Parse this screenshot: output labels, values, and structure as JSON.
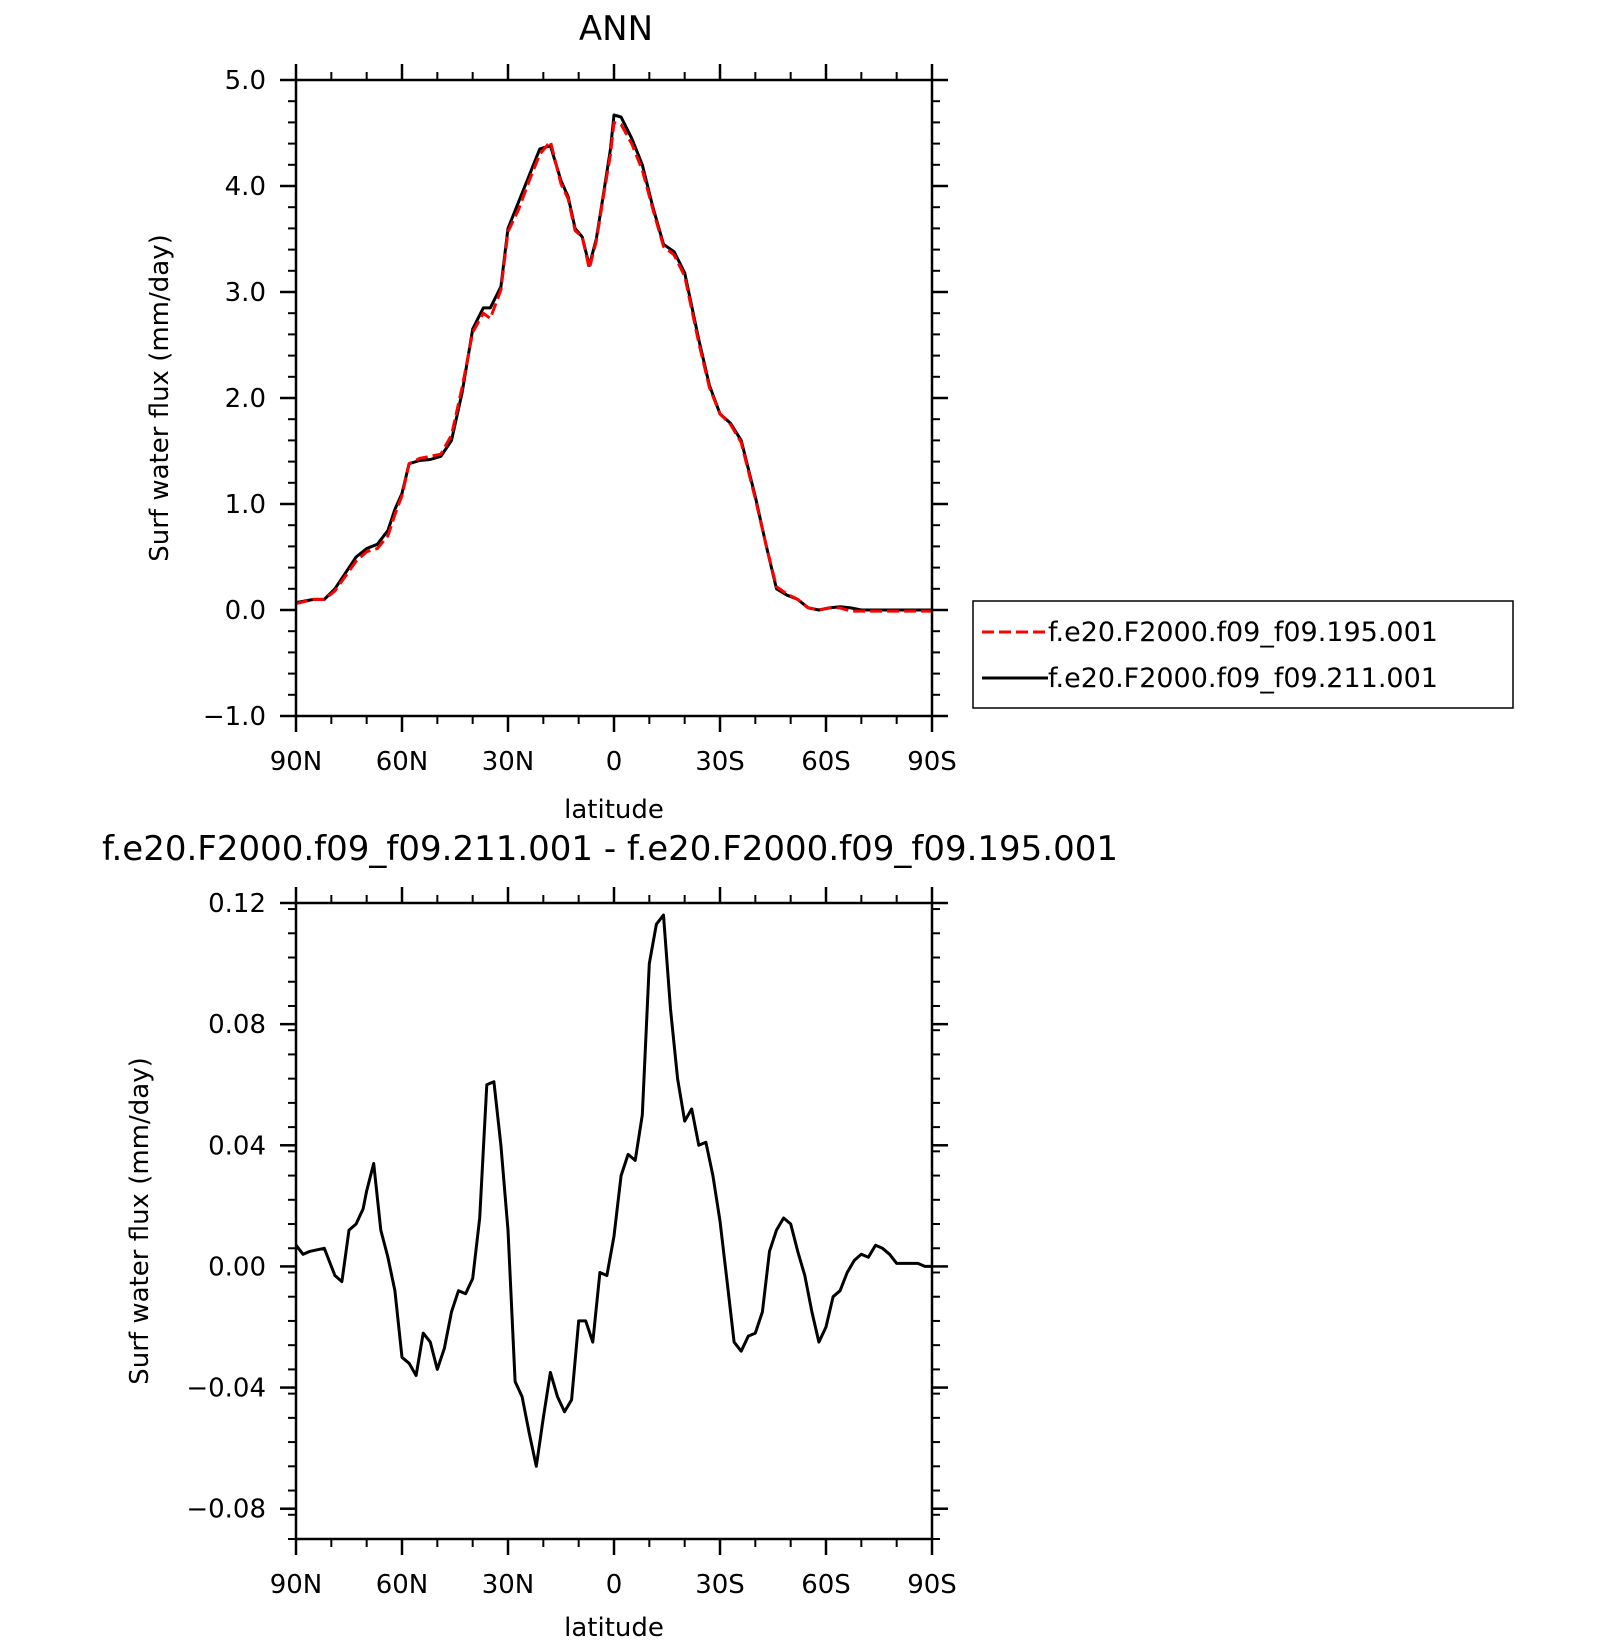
{
  "chart_data": [
    {
      "type": "line",
      "title": "ANN",
      "xlabel": "latitude",
      "ylabel": "Surf water flux (mm/day)",
      "xlim": [
        90,
        -90
      ],
      "ylim": [
        -1.0,
        5.0
      ],
      "x_tick_labels": [
        "90N",
        "60N",
        "30N",
        "0",
        "30S",
        "60S",
        "90S"
      ],
      "y_tick_labels": [
        "-1.0",
        "0.0",
        "1.0",
        "2.0",
        "3.0",
        "4.0",
        "5.0"
      ],
      "legend_position": "right",
      "series": [
        {
          "name": "f.e20.F2000.f09_f09.195.001",
          "color": "#ff0000",
          "dash": "dashed",
          "x": [
            90,
            85,
            82,
            79,
            76,
            73,
            70,
            67,
            64,
            62,
            60,
            58,
            55,
            52,
            49,
            46,
            43,
            40,
            37,
            35,
            32,
            30,
            27,
            24,
            21,
            18,
            15,
            13,
            11,
            9,
            7,
            5,
            3,
            1,
            0,
            -2,
            -5,
            -8,
            -11,
            -14,
            -17,
            -20,
            -24,
            -27,
            -30,
            -33,
            -36,
            -40,
            -43,
            -46,
            -49,
            -52,
            -55,
            -58,
            -61,
            -64,
            -67,
            -70,
            -73,
            -76,
            -79,
            -81,
            -84,
            -87,
            -90
          ],
          "y": [
            0.06,
            0.1,
            0.1,
            0.18,
            0.32,
            0.46,
            0.55,
            0.58,
            0.7,
            0.9,
            1.08,
            1.38,
            1.43,
            1.45,
            1.47,
            1.65,
            2.1,
            2.62,
            2.8,
            2.75,
            3.02,
            3.57,
            3.78,
            4.05,
            4.3,
            4.42,
            4.02,
            3.88,
            3.58,
            3.52,
            3.22,
            3.48,
            3.9,
            4.3,
            4.6,
            4.58,
            4.4,
            4.15,
            3.78,
            3.43,
            3.35,
            3.15,
            2.52,
            2.1,
            1.85,
            1.75,
            1.58,
            1.05,
            0.62,
            0.22,
            0.15,
            0.1,
            0.02,
            0.0,
            0.02,
            0.02,
            -0.01,
            -0.01,
            -0.01,
            -0.01,
            -0.01,
            -0.01,
            -0.01,
            -0.01,
            -0.01
          ]
        },
        {
          "name": "f.e20.F2000.f09_f09.211.001",
          "color": "#000000",
          "dash": "solid",
          "x": [
            90,
            85,
            82,
            79,
            76,
            73,
            70,
            67,
            64,
            62,
            60,
            58,
            55,
            52,
            49,
            46,
            43,
            40,
            37,
            35,
            32,
            30,
            27,
            24,
            21,
            18,
            15,
            13,
            11,
            9,
            7,
            5,
            3,
            1,
            0,
            -2,
            -5,
            -8,
            -11,
            -14,
            -17,
            -20,
            -24,
            -27,
            -30,
            -33,
            -36,
            -40,
            -43,
            -46,
            -49,
            -52,
            -55,
            -58,
            -61,
            -64,
            -67,
            -70,
            -73,
            -76,
            -79,
            -81,
            -84,
            -87,
            -90
          ],
          "y": [
            0.07,
            0.1,
            0.1,
            0.2,
            0.35,
            0.5,
            0.58,
            0.62,
            0.75,
            0.95,
            1.1,
            1.38,
            1.41,
            1.42,
            1.45,
            1.6,
            2.05,
            2.65,
            2.85,
            2.85,
            3.05,
            3.6,
            3.85,
            4.1,
            4.35,
            4.38,
            4.05,
            3.9,
            3.6,
            3.52,
            3.25,
            3.5,
            3.92,
            4.35,
            4.67,
            4.65,
            4.45,
            4.2,
            3.8,
            3.45,
            3.38,
            3.18,
            2.55,
            2.12,
            1.85,
            1.76,
            1.6,
            1.07,
            0.62,
            0.2,
            0.14,
            0.1,
            0.02,
            0.0,
            0.02,
            0.03,
            0.02,
            0.0,
            0.0,
            0.0,
            0.0,
            0.0,
            0.0,
            0.0,
            0.0
          ]
        }
      ]
    },
    {
      "type": "line",
      "title": "f.e20.F2000.f09_f09.211.001 - f.e20.F2000.f09_f09.195.001",
      "xlabel": "latitude",
      "ylabel": "Surf water flux (mm/day)",
      "xlim": [
        90,
        -90
      ],
      "ylim": [
        -0.09,
        0.12
      ],
      "x_tick_labels": [
        "90N",
        "60N",
        "30N",
        "0",
        "30S",
        "60S",
        "90S"
      ],
      "y_tick_labels": [
        "-0.08",
        "-0.04",
        "0.00",
        "0.04",
        "0.08",
        "0.12"
      ],
      "series": [
        {
          "color": "#000000",
          "x": [
            90,
            88,
            86,
            82,
            79,
            77,
            75,
            73,
            71,
            70,
            68,
            66,
            64,
            62,
            60,
            58,
            56,
            54,
            52,
            50,
            48,
            46,
            44,
            42,
            40,
            38,
            36,
            34,
            32,
            30,
            28,
            26,
            24,
            22,
            20,
            18,
            16,
            14,
            12,
            10,
            8,
            6,
            4,
            2,
            0,
            -2,
            -4,
            -6,
            -8,
            -10,
            -12,
            -14,
            -16,
            -18,
            -20,
            -22,
            -24,
            -26,
            -28,
            -30,
            -32,
            -34,
            -36,
            -38,
            -40,
            -42,
            -44,
            -46,
            -48,
            -50,
            -52,
            -54,
            -56,
            -58,
            -60,
            -62,
            -64,
            -66,
            -68,
            -70,
            -72,
            -74,
            -76,
            -78,
            -80,
            -82,
            -84,
            -86,
            -88,
            -90
          ],
          "y": [
            0.007,
            0.004,
            0.005,
            0.006,
            -0.003,
            -0.005,
            0.012,
            0.014,
            0.019,
            0.025,
            0.034,
            0.012,
            0.003,
            -0.008,
            -0.03,
            -0.032,
            -0.036,
            -0.022,
            -0.025,
            -0.034,
            -0.027,
            -0.015,
            -0.008,
            -0.009,
            -0.004,
            0.016,
            0.06,
            0.061,
            0.04,
            0.012,
            -0.038,
            -0.043,
            -0.055,
            -0.066,
            -0.05,
            -0.035,
            -0.043,
            -0.048,
            -0.044,
            -0.018,
            -0.018,
            -0.025,
            -0.002,
            -0.003,
            0.01,
            0.03,
            0.037,
            0.035,
            0.05,
            0.1,
            0.113,
            0.116,
            0.085,
            0.062,
            0.048,
            0.052,
            0.04,
            0.041,
            0.03,
            0.015,
            -0.005,
            -0.025,
            -0.028,
            -0.023,
            -0.022,
            -0.015,
            0.005,
            0.012,
            0.016,
            0.014,
            0.005,
            -0.003,
            -0.015,
            -0.025,
            -0.02,
            -0.01,
            -0.008,
            -0.002,
            0.002,
            0.004,
            0.003,
            0.007,
            0.006,
            0.004,
            0.001,
            0.001,
            0.001,
            0.001,
            0.0,
            0.0
          ]
        }
      ]
    }
  ]
}
